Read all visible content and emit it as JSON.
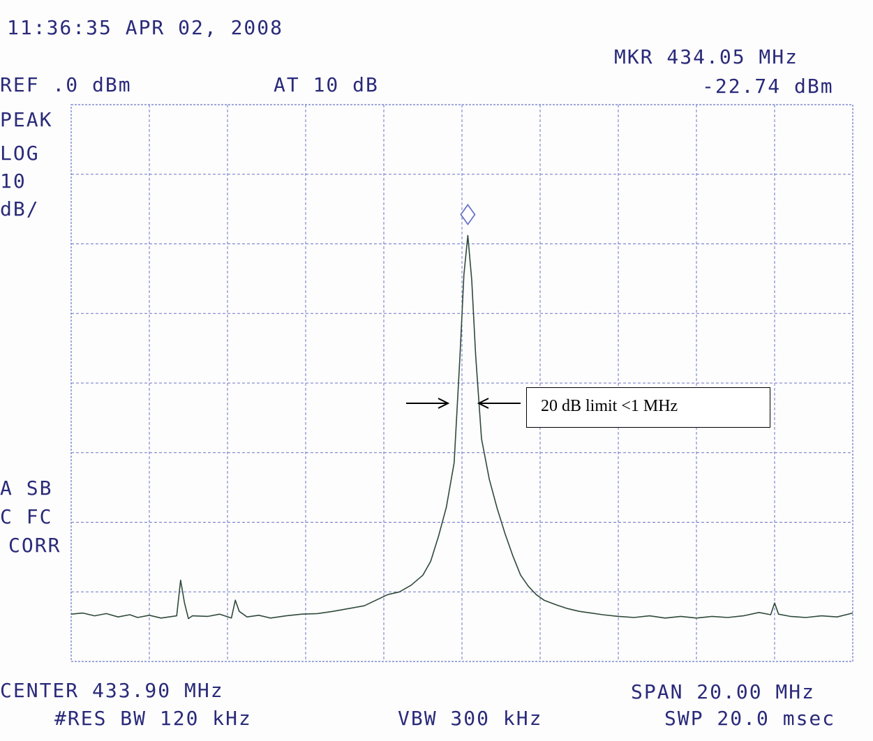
{
  "header": {
    "timestamp": "11:36:35 APR 02, 2008",
    "ref_level": "REF .0 dBm",
    "attenuation": "AT 10 dB",
    "marker_freq": "MKR 434.05 MHz",
    "marker_level": "-22.74 dBm"
  },
  "side_labels": {
    "detector": "PEAK",
    "scale_type": "LOG",
    "scale_value": "10",
    "scale_unit": "dB/",
    "sb": "A SB",
    "fc": "C FC",
    "corr": "CORR"
  },
  "footer": {
    "center": "CENTER 433.90 MHz",
    "span": "SPAN 20.00 MHz",
    "res_bw": "#RES BW 120 kHz",
    "vbw": "VBW 300 kHz",
    "sweep": "SWP 20.0 msec"
  },
  "annotation": {
    "text": "20 dB limit <1 MHz"
  },
  "colors": {
    "grid": "#6a74c8",
    "trace": "#2f4a3a",
    "text": "#2a2a7a"
  },
  "chart_data": {
    "type": "line",
    "x_unit": "MHz",
    "y_unit": "dBm",
    "xlim": [
      423.9,
      443.9
    ],
    "ylim": [
      -100,
      0
    ],
    "grid": true,
    "marker": {
      "x": 434.05,
      "y": -22.74
    },
    "series": [
      {
        "x": [
          423.9,
          424.2,
          424.5,
          424.8,
          425.1,
          425.4,
          425.6,
          425.9,
          426.2,
          426.6,
          426.7,
          426.8,
          426.9,
          427.0,
          427.4,
          427.7,
          428.0,
          428.1,
          428.2,
          428.4,
          428.7,
          429.0,
          429.4,
          429.8,
          430.2,
          430.6,
          431.0,
          431.4,
          431.7,
          432.0,
          432.3,
          432.6,
          432.9,
          433.1,
          433.3,
          433.5,
          433.7,
          433.85,
          433.95,
          434.05,
          434.15,
          434.25,
          434.4,
          434.6,
          434.8,
          435.0,
          435.2,
          435.4,
          435.6,
          435.8,
          436.0,
          436.3,
          436.6,
          436.9,
          437.2,
          437.5,
          437.9,
          438.3,
          438.7,
          439.1,
          439.5,
          439.9,
          440.3,
          440.7,
          441.1,
          441.5,
          441.8,
          441.9,
          442.0,
          442.3,
          442.7,
          443.1,
          443.5,
          443.9
        ],
        "y": [
          -91.5,
          -91.3,
          -91.8,
          -91.4,
          -92.0,
          -91.6,
          -92.1,
          -91.7,
          -92.2,
          -91.8,
          -85.4,
          -89.5,
          -92.3,
          -91.8,
          -91.9,
          -91.5,
          -92.2,
          -89.0,
          -91.0,
          -92.0,
          -91.7,
          -92.2,
          -91.8,
          -91.5,
          -91.4,
          -91.0,
          -90.5,
          -90.0,
          -89.0,
          -88.0,
          -87.5,
          -86.3,
          -84.5,
          -82.0,
          -77.5,
          -72.3,
          -64.3,
          -45.0,
          -30.5,
          -23.5,
          -31.5,
          -45.0,
          -60.0,
          -67.3,
          -72.5,
          -77.0,
          -81.0,
          -84.5,
          -86.5,
          -88.0,
          -89.0,
          -89.8,
          -90.5,
          -91.0,
          -91.3,
          -91.6,
          -91.9,
          -92.1,
          -91.8,
          -92.2,
          -91.9,
          -92.2,
          -91.9,
          -92.1,
          -91.8,
          -91.2,
          -91.6,
          -89.5,
          -91.5,
          -91.9,
          -92.1,
          -91.8,
          -92.0,
          -91.3
        ]
      }
    ]
  }
}
